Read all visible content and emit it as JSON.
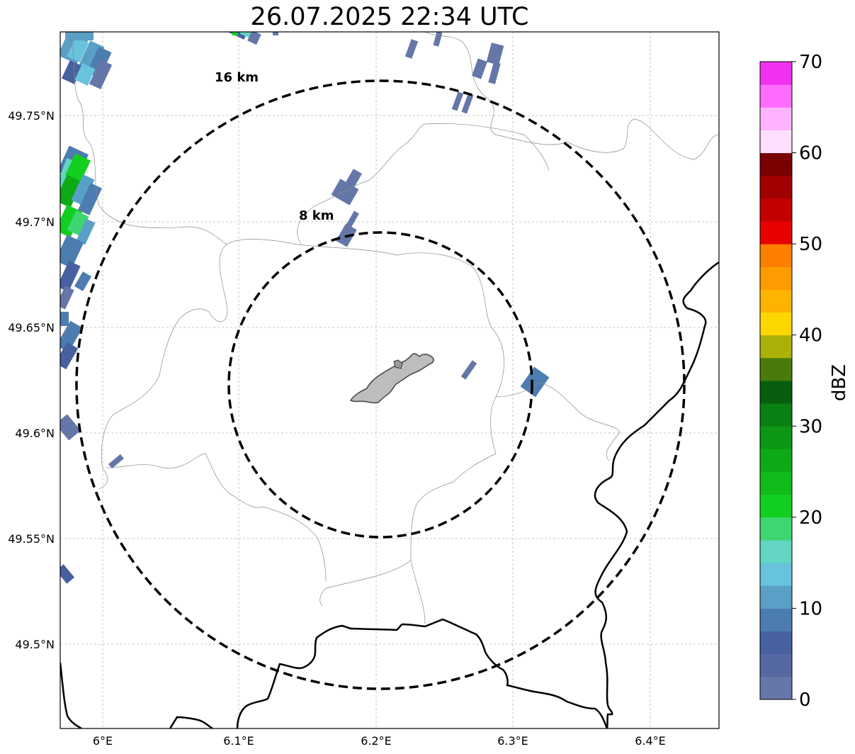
{
  "title": "26.07.2025 22:34 UTC",
  "map": {
    "lon_ticks": [
      "6°E",
      "6.1°E",
      "6.2°E",
      "6.3°E",
      "6.4°E"
    ],
    "lat_ticks": [
      "49.75°N",
      "49.7°N",
      "49.65°N",
      "49.6°N",
      "49.55°N",
      "49.5°N"
    ],
    "range_rings": [
      {
        "label": "8 km",
        "radius_km": 8
      },
      {
        "label": "16 km",
        "radius_km": 16
      }
    ],
    "ring_style": "black dashed",
    "gridlines": true
  },
  "colorbar": {
    "label": "dBZ",
    "min": 0,
    "max": 70,
    "tick_labels": [
      "0",
      "10",
      "20",
      "30",
      "40",
      "50",
      "60",
      "70"
    ],
    "colors": [
      "#6577a9",
      "#5568a2",
      "#4660a0",
      "#4d7cb0",
      "#5aa0c6",
      "#68c3dc",
      "#62d6c2",
      "#3ed670",
      "#12cf1f",
      "#10bb1a",
      "#0ea917",
      "#0c9715",
      "#0a7f12",
      "#075f0d",
      "#4a7a0c",
      "#acb10a",
      "#fed700",
      "#feb300",
      "#fe9b00",
      "#fe7f00",
      "#e80000",
      "#c20000",
      "#a00000",
      "#7a0000",
      "#fee0fe",
      "#feb3fe",
      "#fe6cfe",
      "#f032f0"
    ]
  }
}
